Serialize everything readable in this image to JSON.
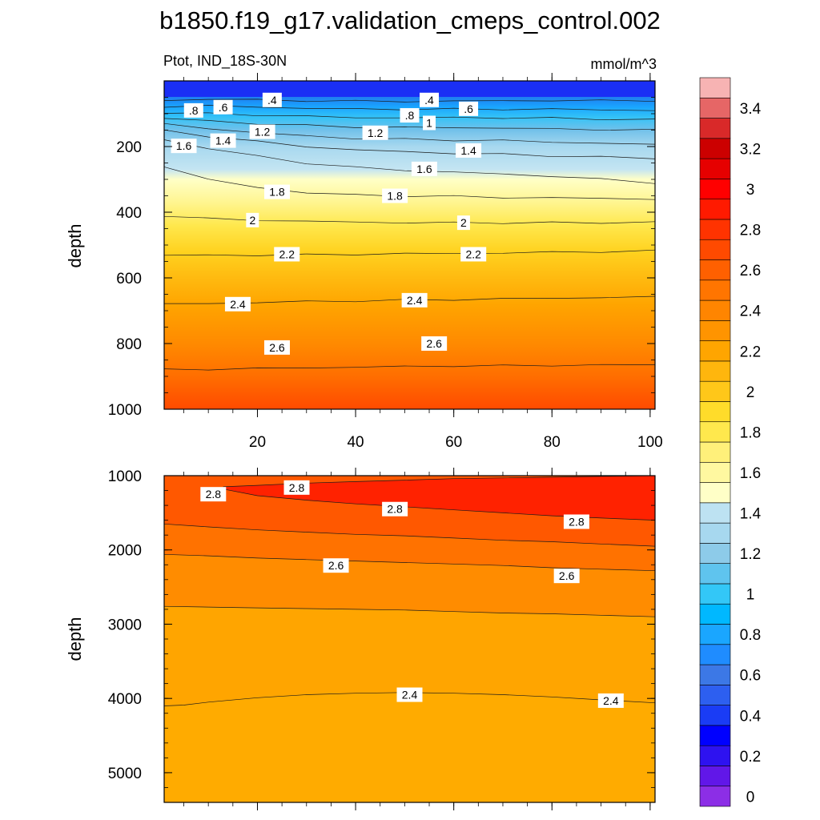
{
  "title": "b1850.f19_g17.validation_cmeps_control.002",
  "subtitle_left": "Ptot, IND_18S-30N",
  "subtitle_right": "mmol/m^3",
  "chart_data": [
    {
      "type": "contour",
      "name": "upper panel",
      "ylabel": "depth",
      "xlim": [
        1,
        101
      ],
      "ylim": [
        1000,
        0
      ],
      "xticks": [
        "20",
        "40",
        "60",
        "80",
        "100"
      ],
      "yticks": [
        "200",
        "400",
        "600",
        "800",
        "1000"
      ],
      "contours": [
        {
          "level": 0.4,
          "x": [
            1,
            10,
            20,
            30,
            40,
            50,
            60,
            70,
            80,
            90,
            101
          ],
          "y": [
            60,
            55,
            58,
            60,
            62,
            62,
            62,
            60,
            60,
            60,
            60
          ]
        },
        {
          "level": 0.6,
          "x": [
            1,
            10,
            20,
            30,
            40,
            50,
            60,
            70,
            80,
            90,
            101
          ],
          "y": [
            78,
            76,
            80,
            83,
            86,
            86,
            86,
            86,
            86,
            88,
            90
          ]
        },
        {
          "level": 0.8,
          "x": [
            1,
            10,
            20,
            30,
            40,
            50,
            60,
            70,
            80,
            90,
            101
          ],
          "y": [
            96,
            100,
            104,
            108,
            112,
            112,
            112,
            112,
            114,
            116,
            118
          ]
        },
        {
          "level": 1.0,
          "x": [
            1,
            10,
            20,
            30,
            40,
            50,
            60,
            70,
            80,
            90,
            101
          ],
          "y": [
            114,
            122,
            130,
            136,
            140,
            142,
            142,
            144,
            146,
            148,
            150
          ]
        },
        {
          "level": 1.2,
          "x": [
            1,
            10,
            20,
            30,
            40,
            50,
            60,
            70,
            80,
            90,
            101
          ],
          "y": [
            132,
            145,
            158,
            168,
            175,
            178,
            180,
            182,
            186,
            190,
            194
          ]
        },
        {
          "level": 1.4,
          "x": [
            1,
            10,
            20,
            30,
            40,
            50,
            60,
            70,
            80,
            90,
            101
          ],
          "y": [
            152,
            168,
            185,
            200,
            210,
            216,
            220,
            224,
            228,
            232,
            236
          ]
        },
        {
          "level": 1.6,
          "x": [
            1,
            10,
            20,
            30,
            40,
            50,
            60,
            70,
            80,
            90,
            101
          ],
          "y": [
            180,
            205,
            230,
            250,
            264,
            272,
            278,
            284,
            290,
            300,
            310
          ]
        },
        {
          "level": 1.8,
          "x": [
            1,
            10,
            20,
            30,
            40,
            50,
            60,
            70,
            80,
            90,
            101
          ],
          "y": [
            260,
            300,
            325,
            340,
            348,
            350,
            352,
            355,
            356,
            358,
            360
          ]
        },
        {
          "level": 2.0,
          "x": [
            1,
            10,
            20,
            30,
            40,
            50,
            60,
            70,
            80,
            90,
            101
          ],
          "y": [
            410,
            420,
            424,
            428,
            430,
            432,
            432,
            432,
            432,
            432,
            430
          ]
        },
        {
          "level": 2.2,
          "x": [
            1,
            10,
            20,
            30,
            40,
            50,
            60,
            70,
            80,
            90,
            101
          ],
          "y": [
            530,
            532,
            530,
            530,
            528,
            526,
            526,
            524,
            522,
            520,
            518
          ]
        },
        {
          "level": 2.4,
          "x": [
            1,
            10,
            20,
            30,
            40,
            50,
            60,
            70,
            80,
            90,
            101
          ],
          "y": [
            680,
            678,
            675,
            672,
            670,
            668,
            666,
            664,
            662,
            660,
            658
          ]
        },
        {
          "level": 2.6,
          "x": [
            1,
            10,
            20,
            30,
            40,
            50,
            60,
            70,
            80,
            90,
            101
          ],
          "y": [
            880,
            878,
            876,
            874,
            872,
            870,
            868,
            868,
            866,
            866,
            864
          ]
        }
      ],
      "contour_labels": [
        {
          "text": ".4",
          "x": 23,
          "y": 58
        },
        {
          "text": ".4",
          "x": 55,
          "y": 58
        },
        {
          "text": ".6",
          "x": 13,
          "y": 80
        },
        {
          "text": ".6",
          "x": 63,
          "y": 85
        },
        {
          "text": ".8",
          "x": 7,
          "y": 90
        },
        {
          "text": ".8",
          "x": 51,
          "y": 105
        },
        {
          "text": "1",
          "x": 55,
          "y": 128
        },
        {
          "text": "1.2",
          "x": 21,
          "y": 155
        },
        {
          "text": "1.2",
          "x": 44,
          "y": 158
        },
        {
          "text": "1.4",
          "x": 13,
          "y": 182
        },
        {
          "text": "1.4",
          "x": 63,
          "y": 212
        },
        {
          "text": "1.6",
          "x": 5,
          "y": 198
        },
        {
          "text": "1.6",
          "x": 54,
          "y": 268
        },
        {
          "text": "1.8",
          "x": 24,
          "y": 338
        },
        {
          "text": "1.8",
          "x": 48,
          "y": 350
        },
        {
          "text": "2",
          "x": 19,
          "y": 424
        },
        {
          "text": "2",
          "x": 62,
          "y": 432
        },
        {
          "text": "2.2",
          "x": 26,
          "y": 528
        },
        {
          "text": "2.2",
          "x": 64,
          "y": 528
        },
        {
          "text": "2.4",
          "x": 16,
          "y": 680
        },
        {
          "text": "2.4",
          "x": 52,
          "y": 668
        },
        {
          "text": "2.6",
          "x": 24,
          "y": 812
        },
        {
          "text": "2.6",
          "x": 56,
          "y": 800
        }
      ]
    },
    {
      "type": "contour",
      "name": "lower panel",
      "ylabel": "depth",
      "xlim": [
        1,
        101
      ],
      "ylim": [
        5400,
        1000
      ],
      "xticks": [],
      "yticks": [
        "1000",
        "2000",
        "3000",
        "4000",
        "5000"
      ],
      "contours": [
        {
          "level": 2.8,
          "x": [
            13,
            20,
            30,
            40,
            50,
            60,
            70,
            80,
            90,
            101
          ],
          "y": [
            1150,
            1130,
            1100,
            1080,
            1060,
            1040,
            1030,
            1020,
            1010,
            1000
          ]
        },
        {
          "level": 2.8,
          "x": [
            13,
            20,
            30,
            40,
            50,
            60,
            70,
            80,
            90,
            101
          ],
          "y": [
            1180,
            1270,
            1330,
            1380,
            1420,
            1460,
            1500,
            1540,
            1570,
            1600
          ]
        },
        {
          "level": 2.7,
          "x": [
            1,
            10,
            20,
            30,
            40,
            50,
            60,
            70,
            80,
            90,
            101
          ],
          "y": [
            1650,
            1690,
            1730,
            1760,
            1790,
            1810,
            1840,
            1870,
            1890,
            1920,
            1950
          ]
        },
        {
          "level": 2.6,
          "x": [
            1,
            10,
            20,
            30,
            40,
            50,
            60,
            70,
            80,
            90,
            101
          ],
          "y": [
            2060,
            2080,
            2110,
            2130,
            2150,
            2170,
            2190,
            2210,
            2240,
            2260,
            2280
          ]
        },
        {
          "level": 2.5,
          "x": [
            1,
            10,
            20,
            30,
            40,
            50,
            60,
            70,
            80,
            90,
            101
          ],
          "y": [
            2760,
            2770,
            2780,
            2790,
            2800,
            2810,
            2830,
            2850,
            2860,
            2880,
            2900
          ]
        },
        {
          "level": 2.4,
          "x": [
            1,
            5,
            10,
            20,
            30,
            40,
            50,
            60,
            70,
            80,
            90,
            101
          ],
          "y": [
            4100,
            4090,
            4050,
            3990,
            3950,
            3930,
            3920,
            3930,
            3950,
            3980,
            4020,
            4060
          ]
        }
      ],
      "contour_labels": [
        {
          "text": "2.8",
          "x": 11,
          "y": 1250
        },
        {
          "text": "2.8",
          "x": 28,
          "y": 1160
        },
        {
          "text": "2.8",
          "x": 48,
          "y": 1450
        },
        {
          "text": "2.8",
          "x": 85,
          "y": 1620
        },
        {
          "text": "2.6",
          "x": 36,
          "y": 2210
        },
        {
          "text": "2.6",
          "x": 83,
          "y": 2350
        },
        {
          "text": "2.4",
          "x": 51,
          "y": 3950
        },
        {
          "text": "2.4",
          "x": 92,
          "y": 4030
        }
      ]
    }
  ],
  "colorbar": {
    "labels": [
      "0",
      "0.2",
      "0.4",
      "0.6",
      "0.8",
      "1",
      "1.2",
      "1.4",
      "1.6",
      "1.8",
      "2",
      "2.2",
      "2.4",
      "2.6",
      "2.8",
      "3",
      "3.2",
      "3.4"
    ],
    "colors": [
      "#8c2ee6",
      "#6117e8",
      "#2e12f0",
      "#0000ff",
      "#1a3cf5",
      "#2d5ff0",
      "#3c78e6",
      "#1f8cff",
      "#1aa6ff",
      "#00b8ff",
      "#33c7f7",
      "#5fc4ee",
      "#8dcbe9",
      "#a7d8ef",
      "#bde2f2",
      "#ffffc7",
      "#fff8a0",
      "#fff07a",
      "#ffe84d",
      "#ffdc2a",
      "#ffc719",
      "#ffb60d",
      "#ffa500",
      "#ff9400",
      "#ff8500",
      "#ff7500",
      "#ff6000",
      "#ff4a00",
      "#ff3300",
      "#ff1a00",
      "#ff0000",
      "#e60000",
      "#cc0000",
      "#d92929",
      "#e66666",
      "#f7b3b3"
    ]
  }
}
